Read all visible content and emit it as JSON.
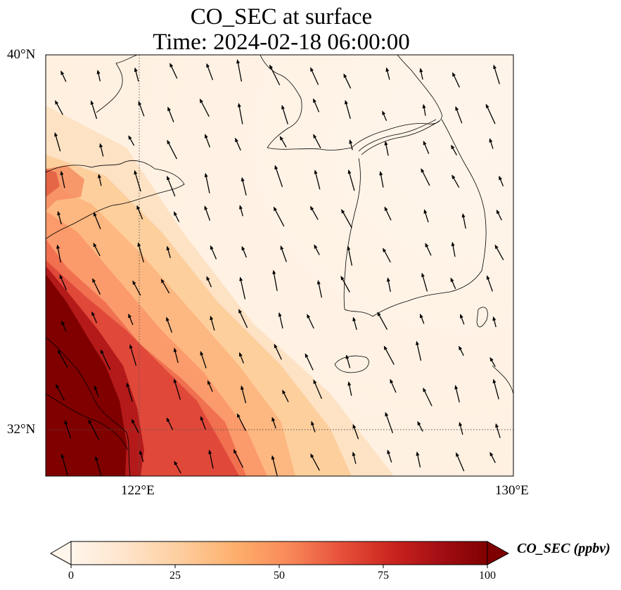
{
  "title": {
    "line1": "CO_SEC at surface",
    "line2": "Time: 2024-02-18 06:00:00"
  },
  "map": {
    "projection": "lat-lon",
    "lon_range": [
      120,
      130
    ],
    "lat_range": [
      31,
      40
    ],
    "gridlines": "dotted",
    "lat_labels": [
      {
        "lat": 40,
        "label": "40°N"
      },
      {
        "lat": 32,
        "label": "32°N"
      }
    ],
    "lon_labels": [
      {
        "lon": 122,
        "label": "122°E"
      },
      {
        "lon": 130,
        "label": "130°E"
      }
    ],
    "field": "CO_SEC",
    "overlay": "wind vectors",
    "wind_direction": "north-northwest",
    "features": [
      "Shandong Peninsula",
      "Liaodong Peninsula",
      "Korean Peninsula",
      "Jeju Island",
      "Yangtze estuary"
    ]
  },
  "colorbar": {
    "title": "CO_SEC (ppbv)",
    "min": 0,
    "max": 100,
    "ticks": [
      "0",
      "25",
      "50",
      "75",
      "100"
    ],
    "extend": "both",
    "colors": [
      "#fff5eb",
      "#fee6ce",
      "#fdd0a2",
      "#fdae6b",
      "#fd8d3c",
      "#f16913",
      "#d94801",
      "#a50f15",
      "#7f0000"
    ]
  }
}
